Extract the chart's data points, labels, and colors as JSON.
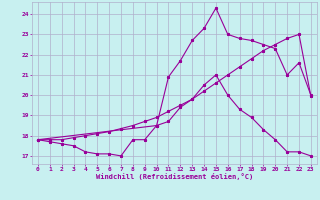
{
  "xlabel": "Windchill (Refroidissement éolien,°C)",
  "bg_color": "#c8f0f0",
  "grid_color": "#b0b0cc",
  "line_color": "#990099",
  "xlim": [
    -0.5,
    23.5
  ],
  "ylim": [
    16.6,
    24.6
  ],
  "yticks": [
    17,
    18,
    19,
    20,
    21,
    22,
    23,
    24
  ],
  "xticks": [
    0,
    1,
    2,
    3,
    4,
    5,
    6,
    7,
    8,
    9,
    10,
    11,
    12,
    13,
    14,
    15,
    16,
    17,
    18,
    19,
    20,
    21,
    22,
    23
  ],
  "line1_x": [
    0,
    1,
    2,
    3,
    4,
    5,
    6,
    7,
    8,
    9,
    10,
    11,
    12,
    13,
    14,
    15,
    16,
    17,
    18,
    19,
    20,
    21,
    22,
    23
  ],
  "line1_y": [
    17.8,
    17.7,
    17.6,
    17.5,
    17.2,
    17.1,
    17.1,
    17.0,
    17.8,
    17.8,
    18.5,
    18.7,
    19.4,
    19.8,
    20.5,
    21.0,
    20.0,
    19.3,
    18.9,
    18.3,
    17.8,
    17.2,
    17.2,
    17.0
  ],
  "line2_x": [
    0,
    1,
    2,
    3,
    4,
    5,
    6,
    7,
    8,
    9,
    10,
    11,
    12,
    13,
    14,
    15,
    16,
    17,
    18,
    19,
    20,
    21,
    22,
    23
  ],
  "line2_y": [
    17.8,
    17.8,
    17.8,
    17.9,
    18.0,
    18.1,
    18.2,
    18.35,
    18.5,
    18.7,
    18.9,
    19.2,
    19.5,
    19.8,
    20.2,
    20.6,
    21.0,
    21.4,
    21.8,
    22.2,
    22.5,
    22.8,
    23.0,
    19.95
  ],
  "line3_x": [
    0,
    10,
    11,
    12,
    13,
    14,
    15,
    16,
    17,
    18,
    19,
    20,
    21,
    22,
    23
  ],
  "line3_y": [
    17.8,
    18.5,
    20.9,
    21.7,
    22.7,
    23.3,
    24.3,
    23.0,
    22.8,
    22.7,
    22.5,
    22.3,
    21.0,
    21.6,
    20.0
  ]
}
